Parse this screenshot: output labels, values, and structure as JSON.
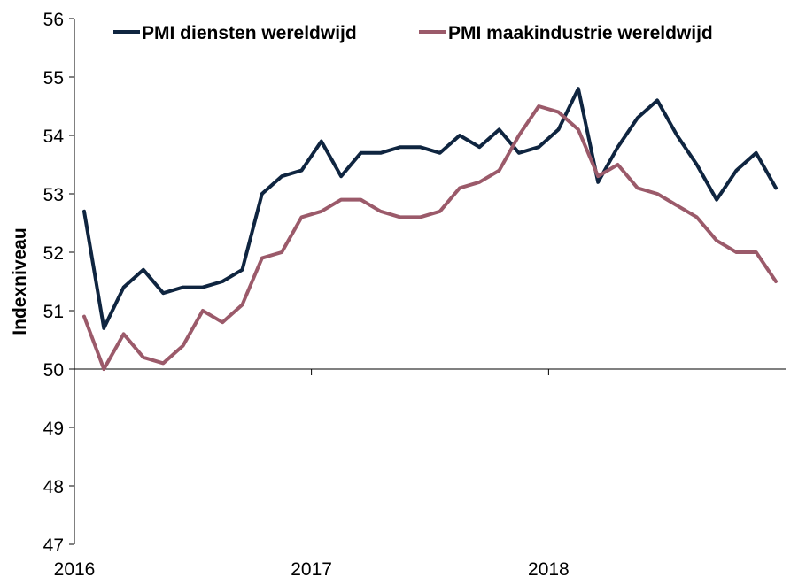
{
  "chart_data": {
    "type": "line",
    "title": "",
    "xlabel": "",
    "ylabel": "Indexniveau",
    "ylim": [
      47,
      56
    ],
    "yticks": [
      "47",
      "48",
      "49",
      "50",
      "51",
      "52",
      "53",
      "54",
      "55",
      "56"
    ],
    "xticks": [
      "2016",
      "2017",
      "2018"
    ],
    "grid": false,
    "legend_position": "top",
    "x_start": "2016-01",
    "x_end": "2018-12",
    "x": [
      "2016-01",
      "2016-02",
      "2016-03",
      "2016-04",
      "2016-05",
      "2016-06",
      "2016-07",
      "2016-08",
      "2016-09",
      "2016-10",
      "2016-11",
      "2016-12",
      "2017-01",
      "2017-02",
      "2017-03",
      "2017-04",
      "2017-05",
      "2017-06",
      "2017-07",
      "2017-08",
      "2017-09",
      "2017-10",
      "2017-11",
      "2017-12",
      "2018-01",
      "2018-02",
      "2018-03",
      "2018-04",
      "2018-05",
      "2018-06",
      "2018-07",
      "2018-08",
      "2018-09",
      "2018-10",
      "2018-11",
      "2018-12"
    ],
    "series": [
      {
        "name": "PMI diensten wereldwijd",
        "color": "#0f2540",
        "values": [
          52.7,
          50.7,
          51.4,
          51.7,
          51.3,
          51.4,
          51.4,
          51.5,
          51.7,
          53.0,
          53.3,
          53.4,
          53.9,
          53.3,
          53.7,
          53.7,
          53.8,
          53.8,
          53.7,
          54.0,
          53.8,
          54.1,
          53.7,
          53.8,
          54.1,
          54.8,
          53.2,
          53.8,
          54.3,
          54.6,
          54.0,
          53.5,
          52.9,
          53.4,
          53.7,
          53.1
        ]
      },
      {
        "name": "PMI maakindustrie wereldwijd",
        "color": "#9b5a6a",
        "values": [
          50.9,
          50.0,
          50.6,
          50.2,
          50.1,
          50.4,
          51.0,
          50.8,
          51.1,
          51.9,
          52.0,
          52.6,
          52.7,
          52.9,
          52.9,
          52.7,
          52.6,
          52.6,
          52.7,
          53.1,
          53.2,
          53.4,
          54.0,
          54.5,
          54.4,
          54.1,
          53.3,
          53.5,
          53.1,
          53.0,
          52.8,
          52.6,
          52.2,
          52.0,
          52.0,
          51.5
        ]
      }
    ]
  }
}
